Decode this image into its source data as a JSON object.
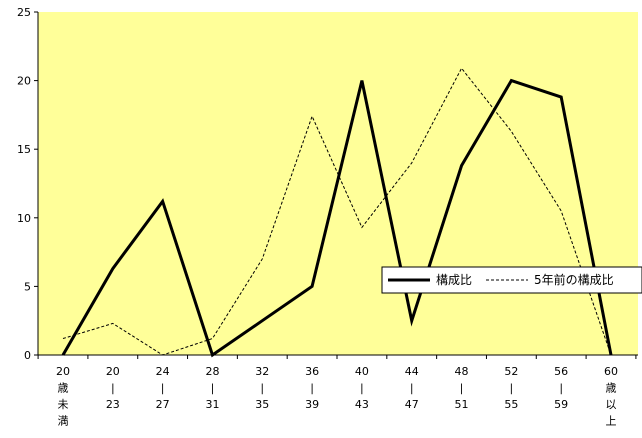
{
  "chart_data": {
    "type": "line",
    "title": "",
    "xlabel": "",
    "ylabel": "",
    "ylim": [
      0,
      25
    ],
    "yticks": [
      0,
      5,
      10,
      15,
      20,
      25
    ],
    "grid": false,
    "legend_position": "right",
    "plot_background": "#ffff99",
    "categories": [
      [
        "20",
        "歳",
        "未",
        "満"
      ],
      [
        "20",
        "|",
        "23"
      ],
      [
        "24",
        "|",
        "27"
      ],
      [
        "28",
        "|",
        "31"
      ],
      [
        "32",
        "|",
        "35"
      ],
      [
        "36",
        "|",
        "39"
      ],
      [
        "40",
        "|",
        "43"
      ],
      [
        "44",
        "|",
        "47"
      ],
      [
        "48",
        "|",
        "51"
      ],
      [
        "52",
        "|",
        "55"
      ],
      [
        "56",
        "|",
        "59"
      ],
      [
        "60",
        "歳",
        "以",
        "上"
      ]
    ],
    "series": [
      {
        "name": "構成比",
        "style": "solid-thick",
        "color": "#000000",
        "values": [
          0,
          6.3,
          11.2,
          0,
          2.5,
          5.0,
          20.0,
          2.5,
          13.8,
          20.0,
          18.8,
          0
        ]
      },
      {
        "name": "5年前の構成比",
        "style": "dashed",
        "color": "#000000",
        "values": [
          1.2,
          2.3,
          0,
          1.2,
          7.0,
          17.4,
          9.3,
          14.0,
          20.9,
          16.3,
          10.5,
          0
        ]
      }
    ]
  }
}
